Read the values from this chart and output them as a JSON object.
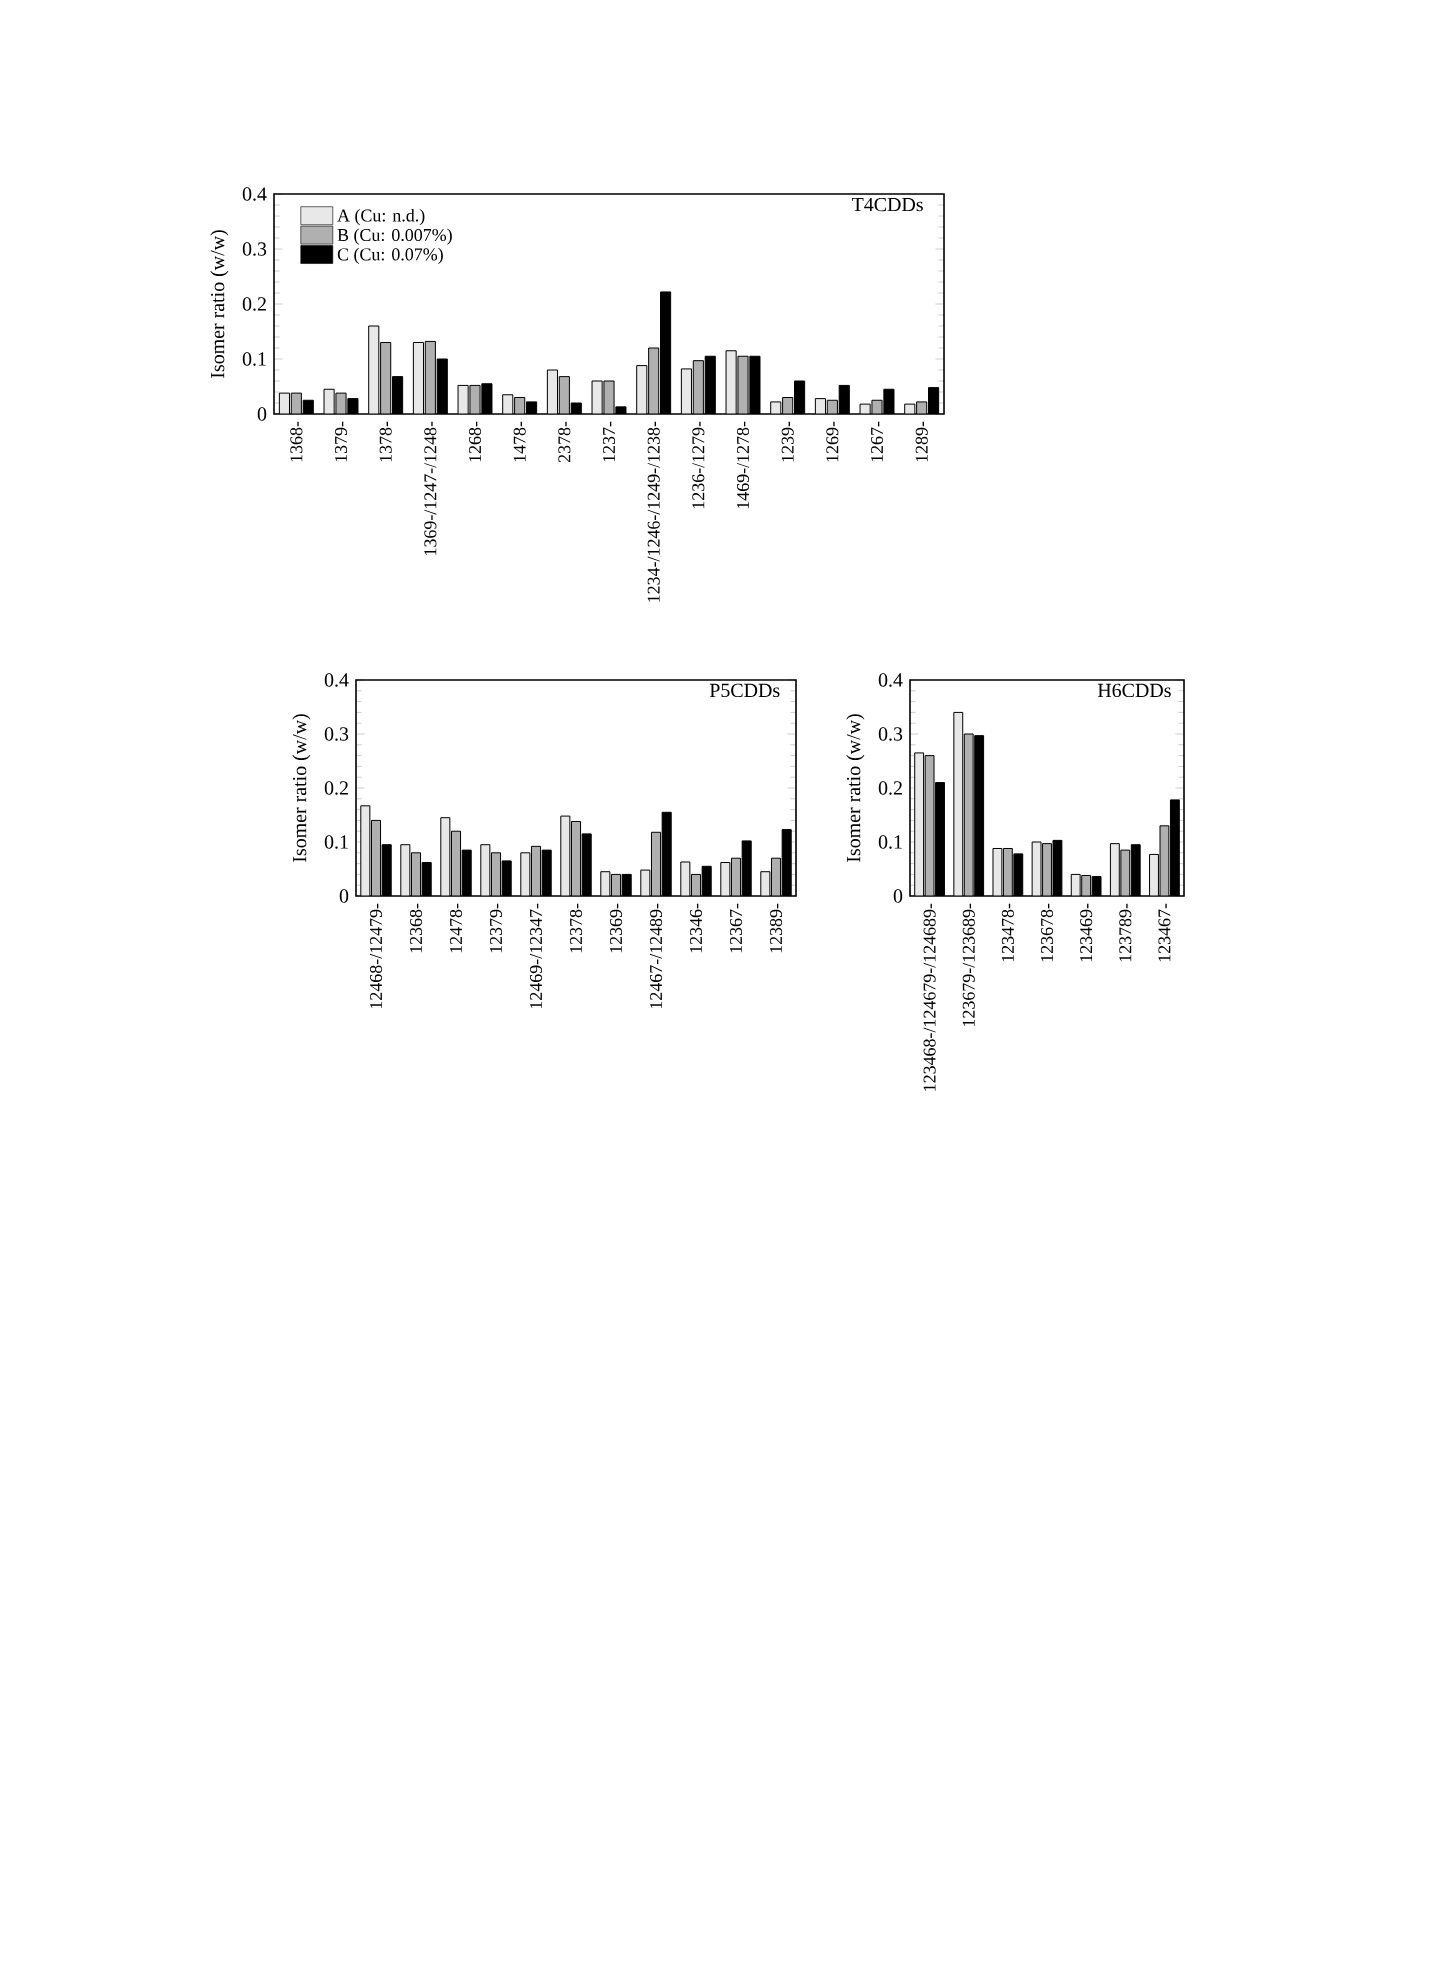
{
  "chart_data": [
    {
      "type": "bar",
      "title": "T4CDDs",
      "ylabel": "Isomer ratio (w/w)",
      "ylim": [
        0,
        0.4
      ],
      "yticks": [
        0,
        0.1,
        0.2,
        0.3,
        0.4
      ],
      "legend": "top left",
      "categories": [
        "1368-",
        "1379-",
        "1378-",
        "1369-/1247-/1248-",
        "1268-",
        "1478-",
        "2378-",
        "1237-",
        "1234-/1246-/1249-/1238-",
        "1236-/1279-",
        "1469-/1278-",
        "1239-",
        "1269-",
        "1267-",
        "1289-"
      ],
      "series": [
        {
          "name": "A (Cu: n.d.)",
          "color": "#e8e8e8",
          "values": [
            0.038,
            0.045,
            0.16,
            0.13,
            0.052,
            0.035,
            0.08,
            0.06,
            0.088,
            0.082,
            0.115,
            0.022,
            0.028,
            0.018,
            0.018
          ]
        },
        {
          "name": "B (Cu: 0.007%)",
          "color": "#b0b0b0",
          "values": [
            0.038,
            0.038,
            0.13,
            0.132,
            0.052,
            0.03,
            0.068,
            0.06,
            0.12,
            0.097,
            0.105,
            0.03,
            0.025,
            0.025,
            0.022
          ]
        },
        {
          "name": "C (Cu: 0.07%)",
          "color": "#000000",
          "values": [
            0.025,
            0.028,
            0.068,
            0.1,
            0.055,
            0.022,
            0.02,
            0.013,
            0.222,
            0.105,
            0.105,
            0.06,
            0.052,
            0.045,
            0.048
          ]
        }
      ]
    },
    {
      "type": "bar",
      "title": "P5CDDs",
      "ylabel": "Isomer ratio (w/w)",
      "ylim": [
        0,
        0.4
      ],
      "yticks": [
        0,
        0.1,
        0.2,
        0.3,
        0.4
      ],
      "categories": [
        "12468-/12479-",
        "12368-",
        "12478-",
        "12379-",
        "12469-/12347-",
        "12378-",
        "12369-",
        "12467-/12489-",
        "12346-",
        "12367-",
        "12389-"
      ],
      "series": [
        {
          "color": "#e8e8e8",
          "values": [
            0.167,
            0.095,
            0.145,
            0.095,
            0.08,
            0.148,
            0.045,
            0.048,
            0.063,
            0.062,
            0.045
          ]
        },
        {
          "color": "#b0b0b0",
          "values": [
            0.14,
            0.08,
            0.12,
            0.08,
            0.092,
            0.138,
            0.04,
            0.118,
            0.04,
            0.07,
            0.07
          ]
        },
        {
          "color": "#000000",
          "values": [
            0.095,
            0.062,
            0.085,
            0.065,
            0.085,
            0.115,
            0.04,
            0.155,
            0.055,
            0.102,
            0.123
          ]
        }
      ]
    },
    {
      "type": "bar",
      "title": "H6CDDs",
      "ylabel": "Isomer ratio (w/w)",
      "ylim": [
        0,
        0.4
      ],
      "yticks": [
        0,
        0.1,
        0.2,
        0.3,
        0.4
      ],
      "categories": [
        "123468-/124679-/124689-",
        "123679-/123689-",
        "123478-",
        "123678-",
        "123469-",
        "123789-",
        "123467-"
      ],
      "series": [
        {
          "color": "#e8e8e8",
          "values": [
            0.265,
            0.34,
            0.088,
            0.1,
            0.04,
            0.097,
            0.077
          ]
        },
        {
          "color": "#b0b0b0",
          "values": [
            0.26,
            0.3,
            0.088,
            0.097,
            0.038,
            0.085,
            0.13
          ]
        },
        {
          "color": "#000000",
          "values": [
            0.21,
            0.297,
            0.078,
            0.103,
            0.036,
            0.095,
            0.178
          ]
        }
      ]
    }
  ]
}
